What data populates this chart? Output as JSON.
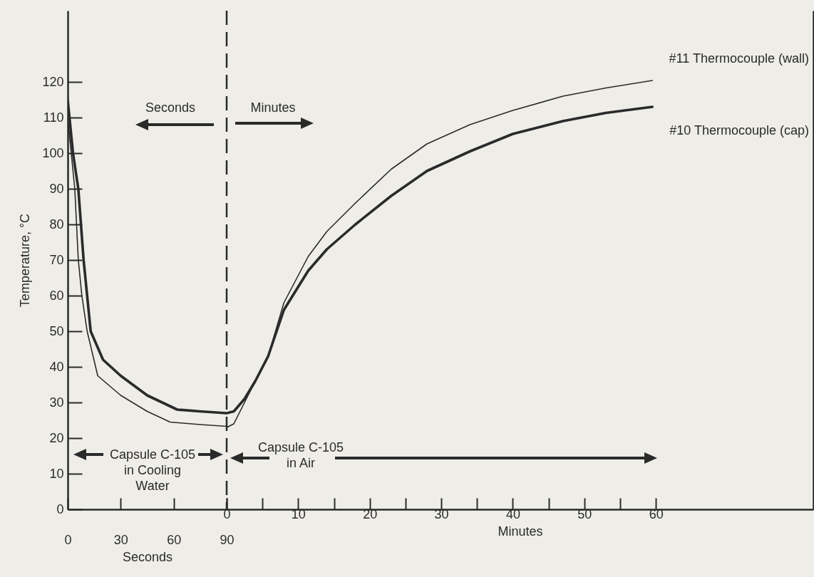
{
  "chart_data": [
    {
      "type": "line",
      "xlabel": "Seconds",
      "ylabel": "Temperature, °C",
      "xlim": [
        0,
        90
      ],
      "xticks": [
        0,
        30,
        60,
        90
      ],
      "ylim": [
        0,
        140
      ],
      "yticks": [
        0,
        10,
        20,
        30,
        40,
        50,
        60,
        70,
        80,
        90,
        100,
        110,
        120
      ],
      "series": [
        {
          "color": "#2a2a2a",
          "x": [
            0,
            2,
            4,
            6,
            8,
            11,
            17,
            30,
            45,
            58,
            75,
            90
          ],
          "values": [
            110,
            100,
            90,
            70,
            60,
            50,
            37.5,
            32,
            27.5,
            24.5,
            23.8,
            23.3
          ]
        },
        {
          "color": "#2a2a2a",
          "x": [
            0,
            3,
            6,
            9,
            11,
            13,
            20,
            30,
            45,
            62,
            75,
            90
          ],
          "values": [
            115,
            100,
            90,
            70,
            60,
            50,
            42,
            37.5,
            32,
            28,
            27.5,
            27
          ]
        }
      ],
      "ref_lines": [
        {
          "axis": "x",
          "value": 90,
          "line_style": "dashed",
          "color": "#2a2a2a"
        }
      ],
      "annotations": [
        "Seconds",
        "Capsule C-105\nin Cooling\nWater"
      ]
    },
    {
      "type": "line",
      "xlabel": "Minutes",
      "xlim": [
        0,
        82
      ],
      "xticks": [
        0,
        {
          "value": 5,
          "label": null
        },
        10,
        {
          "value": 15,
          "label": null
        },
        20,
        {
          "value": 25,
          "label": null
        },
        30,
        {
          "value": 35,
          "label": null
        },
        40,
        {
          "value": 45,
          "label": null
        },
        50,
        {
          "value": 55,
          "label": null
        },
        60
      ],
      "ylim": [
        0,
        140
      ],
      "tick_labels": "x",
      "series": [
        {
          "name": "#11 Thermocouple (wall)",
          "color": "#2a2a2a",
          "x": [
            0,
            1,
            2.5,
            4,
            5.8,
            8,
            11.4,
            14,
            18,
            23,
            28,
            34,
            40,
            47,
            53,
            59.5
          ],
          "values": [
            23,
            24,
            30,
            36,
            43,
            58,
            71,
            78,
            86,
            95.5,
            102.6,
            108,
            112,
            116,
            118.3,
            120.4
          ]
        },
        {
          "name": "#10 Thermocouple (cap)",
          "color": "#2a2a2a",
          "x": [
            0,
            1,
            2.5,
            4,
            5.8,
            8,
            11.4,
            14,
            18,
            23,
            28,
            34,
            40,
            47,
            53,
            59.5
          ],
          "values": [
            27,
            27.5,
            31,
            36,
            43,
            56,
            67,
            73,
            80,
            88,
            95,
            100.5,
            105.4,
            109,
            111.3,
            113
          ]
        }
      ],
      "annotations": [
        "Minutes",
        "Capsule C-105\nin Air"
      ]
    }
  ]
}
